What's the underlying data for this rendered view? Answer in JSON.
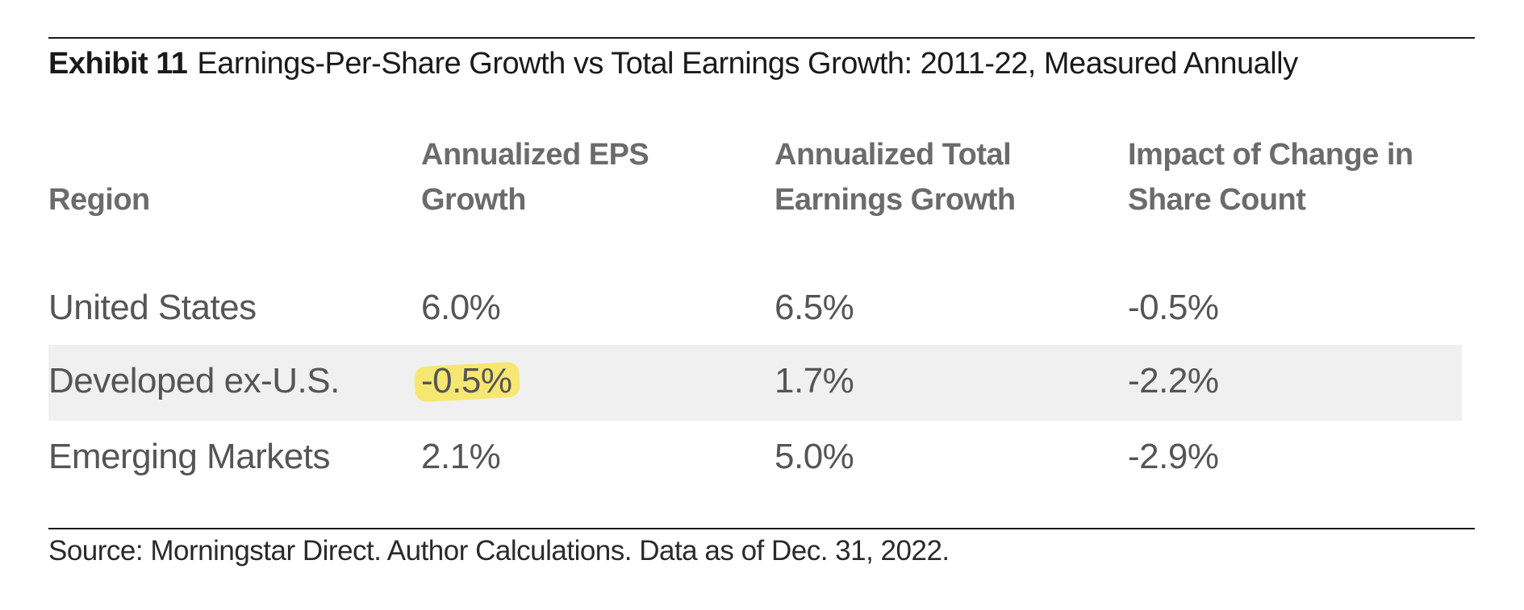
{
  "exhibit": {
    "label": "Exhibit 11",
    "title": "Earnings-Per-Share Growth vs Total Earnings Growth: 2011-22, Measured Annually"
  },
  "chart_data": {
    "type": "table",
    "columns": [
      {
        "line1": "",
        "line2": "Region"
      },
      {
        "line1": "Annualized EPS",
        "line2": "Growth"
      },
      {
        "line1": "Annualized Total",
        "line2": "Earnings Growth"
      },
      {
        "line1": "Impact of Change in",
        "line2": "Share Count"
      }
    ],
    "rows": [
      {
        "region": "United States",
        "eps_growth": "6.0%",
        "total_earnings_growth": "6.5%",
        "share_count_impact": "-0.5%"
      },
      {
        "region": "Developed ex-U.S.",
        "eps_growth": "-0.5%",
        "total_earnings_growth": "1.7%",
        "share_count_impact": "-2.2%"
      },
      {
        "region": "Emerging Markets",
        "eps_growth": "2.1%",
        "total_earnings_growth": "5.0%",
        "share_count_impact": "-2.9%"
      }
    ],
    "highlighted_cell": {
      "row": 1,
      "column": "eps_growth",
      "color": "#f7e55c"
    },
    "alternate_row_color": "#f0f0f0"
  },
  "source": "Source: Morningstar Direct. Author Calculations. Data as of Dec. 31, 2022."
}
